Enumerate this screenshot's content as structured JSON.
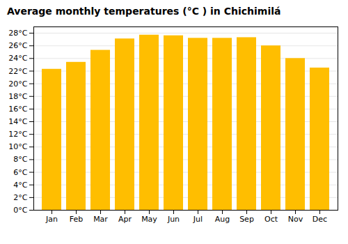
{
  "chart_data": {
    "type": "bar",
    "title": "Average monthly temperatures (°C ) in Chichimilá",
    "categories": [
      "Jan",
      "Feb",
      "Mar",
      "Apr",
      "May",
      "Jun",
      "Jul",
      "Aug",
      "Sep",
      "Oct",
      "Nov",
      "Dec"
    ],
    "values": [
      22.3,
      23.4,
      25.3,
      27.1,
      27.7,
      27.6,
      27.2,
      27.2,
      27.3,
      26.0,
      24.0,
      22.5
    ],
    "color": "#FFBE00",
    "ylim": [
      0,
      29
    ],
    "yticks": [
      {
        "value": 0,
        "label": "0°C"
      },
      {
        "value": 2,
        "label": "2°C"
      },
      {
        "value": 4,
        "label": "4°C"
      },
      {
        "value": 6,
        "label": "6°C"
      },
      {
        "value": 8,
        "label": "8°C"
      },
      {
        "value": 10,
        "label": "10°C"
      },
      {
        "value": 12,
        "label": "12°C"
      },
      {
        "value": 14,
        "label": "14°C"
      },
      {
        "value": 16,
        "label": "16°C"
      },
      {
        "value": 18,
        "label": "18°C"
      },
      {
        "value": 20,
        "label": "20°C"
      },
      {
        "value": 22,
        "label": "22°C"
      },
      {
        "value": 24,
        "label": "24°C"
      },
      {
        "value": 26,
        "label": "26°C"
      },
      {
        "value": 28,
        "label": "28°C"
      }
    ],
    "grid": true
  }
}
